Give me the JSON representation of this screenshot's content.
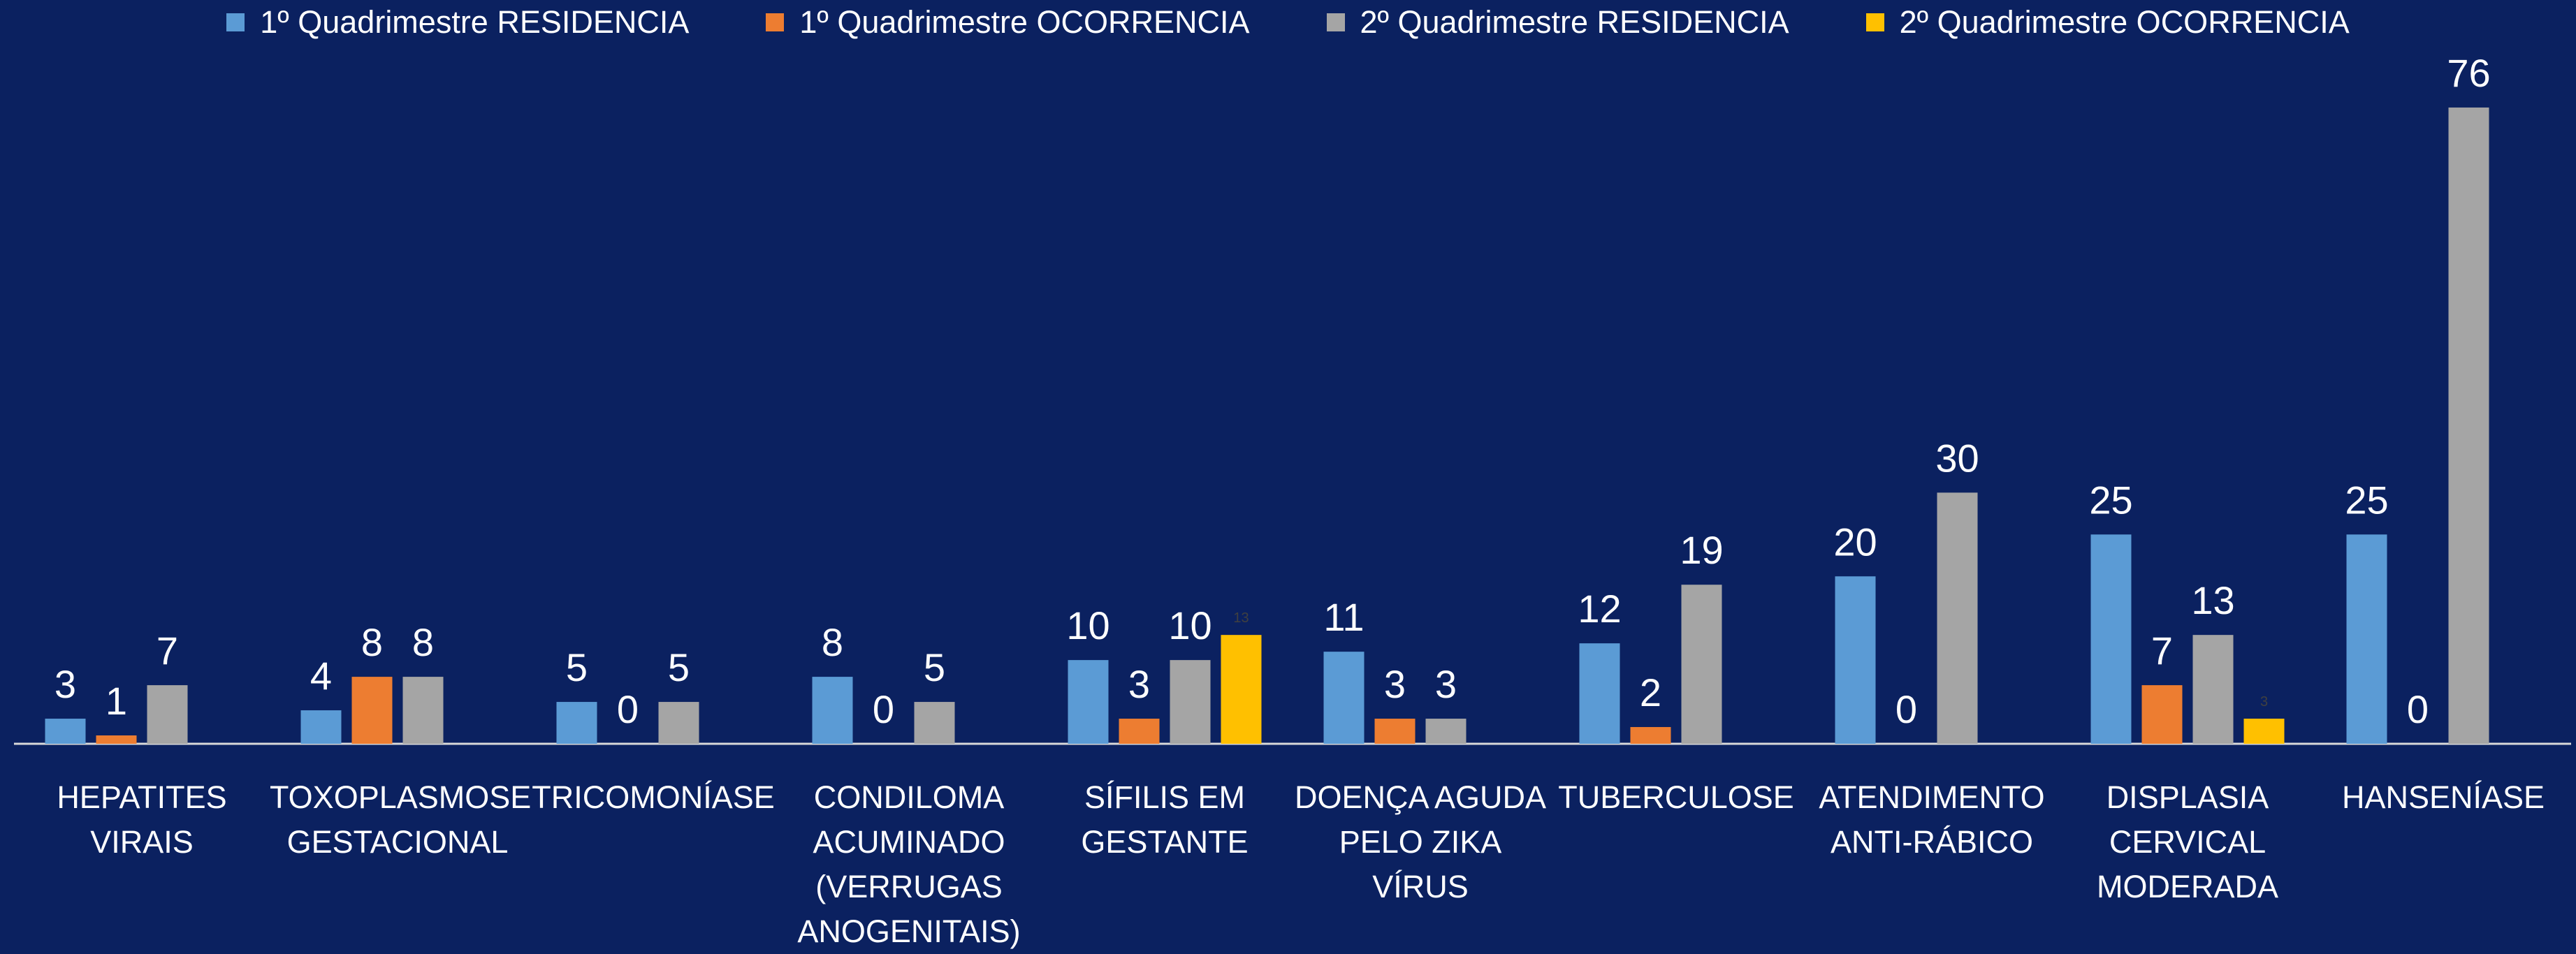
{
  "chart_data": {
    "type": "bar",
    "categories": [
      "HEPATITES VIRAIS",
      "TOXOPLASMOSE GESTACIONAL",
      "TRICOMONÍASE",
      "CONDILOMA ACUMINADO (VERRUGAS ANOGENITAIS)",
      "SÍFILIS EM GESTANTE",
      "DOENÇA AGUDA PELO ZIKA VÍRUS",
      "TUBERCULOSE",
      "ATENDIMENTO ANTI-RÁBICO",
      "DISPLASIA CERVICAL MODERADA",
      "HANSENÍASE"
    ],
    "series": [
      {
        "name": "1º Quadrimestre RESIDENCIA",
        "color": "#5b9bd5",
        "values": [
          3,
          4,
          5,
          8,
          10,
          11,
          12,
          20,
          25,
          25
        ]
      },
      {
        "name": "1º Quadrimestre OCORRENCIA",
        "color": "#ed7d31",
        "values": [
          1,
          8,
          0,
          0,
          3,
          3,
          2,
          0,
          7,
          0
        ]
      },
      {
        "name": "2º Quadrimestre RESIDENCIA",
        "color": "#a5a5a5",
        "values": [
          7,
          8,
          5,
          5,
          10,
          3,
          19,
          30,
          13,
          76
        ]
      },
      {
        "name": "2º Quadrimestre OCORRENCIA",
        "color": "#ffc000",
        "values": [
          null,
          null,
          null,
          null,
          13,
          null,
          null,
          null,
          3,
          null
        ]
      }
    ],
    "ylim": [
      0,
      80
    ],
    "legend": "top"
  }
}
